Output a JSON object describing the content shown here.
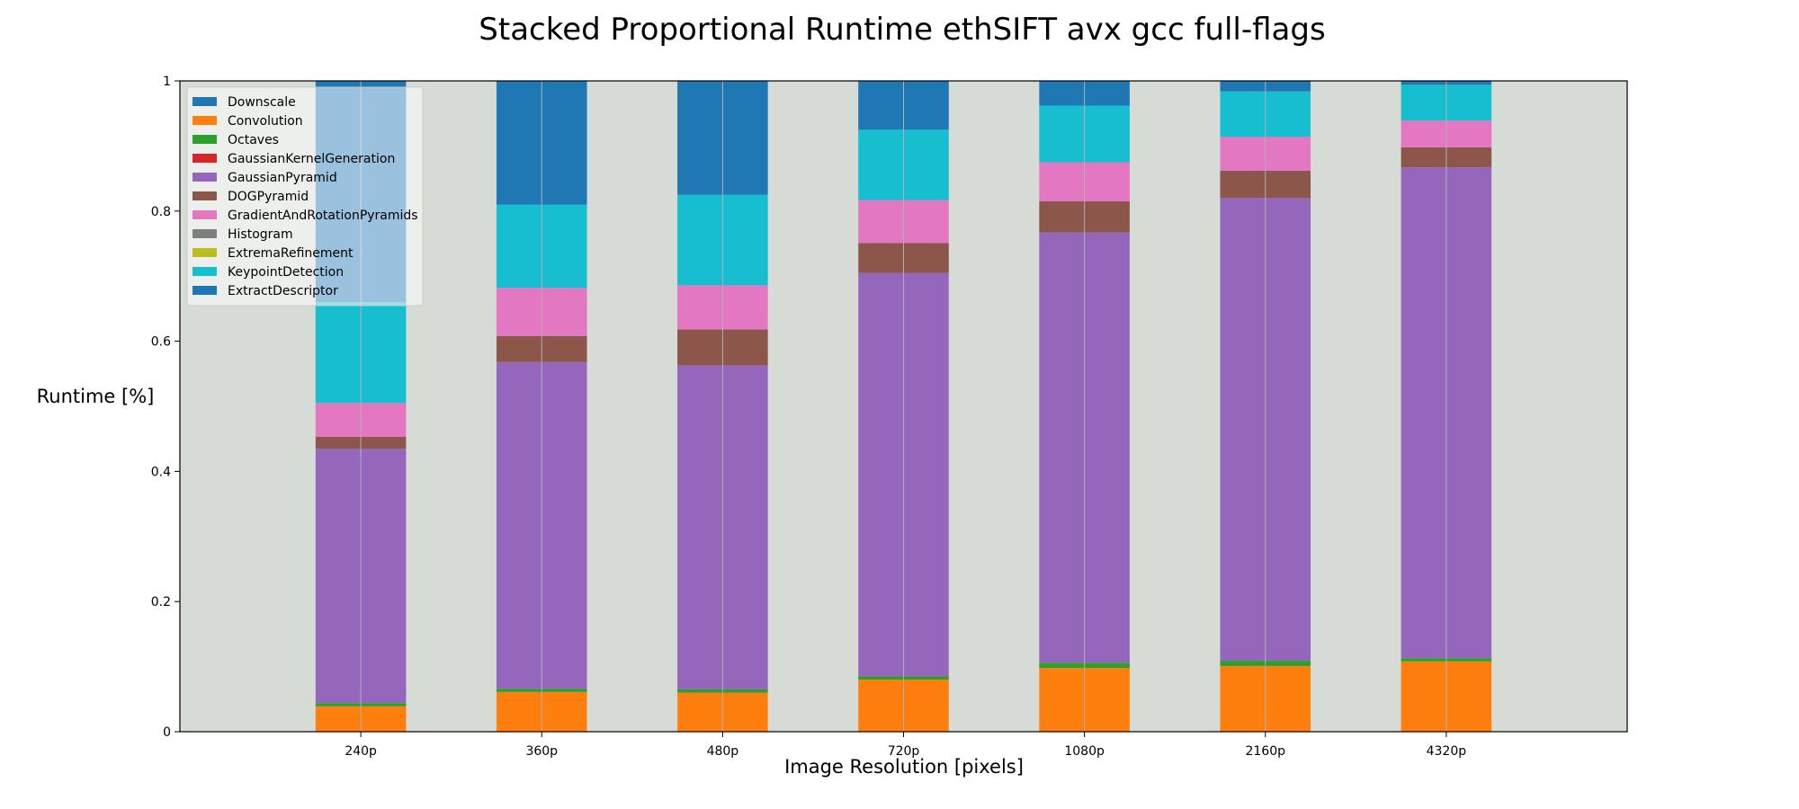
{
  "chart_data": {
    "type": "bar",
    "stacked": true,
    "title": "Stacked Proportional Runtime ethSIFT avx gcc full-flags",
    "xlabel": "Image Resolution [pixels]",
    "ylabel": "Runtime [%]",
    "ylim": [
      0,
      1
    ],
    "yticks": [
      0,
      0.2,
      0.4,
      0.6,
      0.8,
      1
    ],
    "ytick_labels": [
      "0",
      "0.2",
      "0.4",
      "0.6",
      "0.8",
      "1"
    ],
    "xlim": [
      -1,
      7
    ],
    "grid": "vertical",
    "legend_position": "top-left",
    "background_color": "#d6dbd6",
    "categories": [
      "240p",
      "360p",
      "480p",
      "720p",
      "1080p",
      "2160p",
      "4320p"
    ],
    "series": [
      {
        "name": "Downscale",
        "color": "#1f77b4",
        "values": [
          0.0,
          0.0,
          0.0,
          0.0,
          0.0,
          0.0,
          0.0
        ]
      },
      {
        "name": "Convolution",
        "color": "#ff7f0e",
        "values": [
          0.039,
          0.061,
          0.06,
          0.08,
          0.098,
          0.101,
          0.108
        ]
      },
      {
        "name": "Octaves",
        "color": "#2ca02c",
        "values": [
          0.005,
          0.005,
          0.005,
          0.005,
          0.008,
          0.008,
          0.005
        ]
      },
      {
        "name": "GaussianKernelGeneration",
        "color": "#d62728",
        "values": [
          0.0,
          0.0,
          0.0,
          0.0,
          0.0,
          0.0,
          0.0
        ]
      },
      {
        "name": "GaussianPyramid",
        "color": "#9467bd",
        "values": [
          0.391,
          0.502,
          0.498,
          0.62,
          0.661,
          0.711,
          0.754
        ]
      },
      {
        "name": "DOGPyramid",
        "color": "#8c564b",
        "values": [
          0.018,
          0.04,
          0.055,
          0.046,
          0.048,
          0.042,
          0.031
        ]
      },
      {
        "name": "GradientAndRotationPyramids",
        "color": "#e377c2",
        "values": [
          0.052,
          0.074,
          0.068,
          0.066,
          0.06,
          0.052,
          0.041
        ]
      },
      {
        "name": "Histogram",
        "color": "#7f7f7f",
        "values": [
          0.0,
          0.0,
          0.0,
          0.0,
          0.0,
          0.0,
          0.0
        ]
      },
      {
        "name": "ExtremaRefinement",
        "color": "#bcbd22",
        "values": [
          0.0,
          0.0,
          0.0,
          0.0,
          0.0,
          0.0,
          0.0
        ]
      },
      {
        "name": "KeypointDetection",
        "color": "#17becf",
        "values": [
          0.155,
          0.128,
          0.139,
          0.108,
          0.087,
          0.07,
          0.055
        ]
      },
      {
        "name": "ExtractDescriptor",
        "color": "#1f77b4",
        "values": [
          0.34,
          0.19,
          0.175,
          0.075,
          0.038,
          0.016,
          0.006
        ]
      }
    ]
  }
}
